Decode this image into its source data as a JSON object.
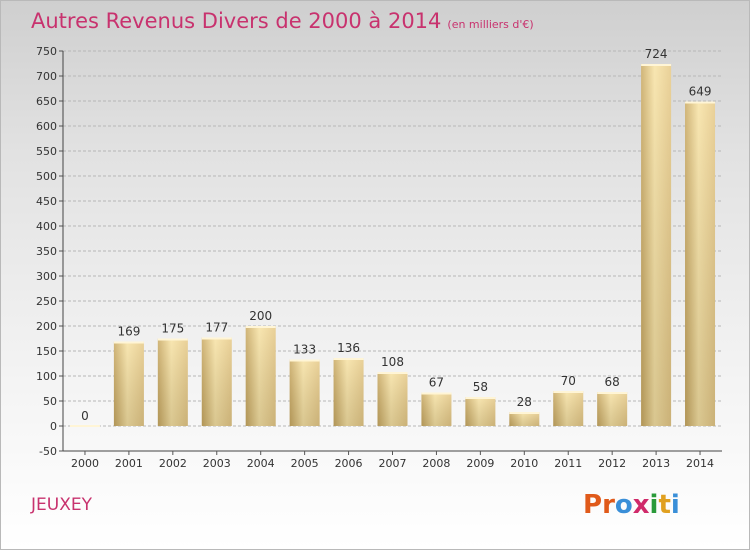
{
  "header": {
    "title": "Autres Revenus Divers de 2000 à 2014",
    "unit": "(en milliers d'€)"
  },
  "footer": {
    "place": "JEUXEY",
    "logo_letters": [
      "P",
      "r",
      "o",
      "x",
      "i",
      "t",
      "i"
    ],
    "logo_colors": [
      "#e05a1a",
      "#e05a1a",
      "#3a8fd8",
      "#d02a6a",
      "#2a9a3a",
      "#e0a020",
      "#3a8fd8"
    ]
  },
  "colors": {
    "title": "#c8326e",
    "bar_light": "#f5e0a0",
    "bar_dark": "#c8a860",
    "grid": "#b7b7b7"
  },
  "chart_data": {
    "type": "bar",
    "categories": [
      "2000",
      "2001",
      "2002",
      "2003",
      "2004",
      "2005",
      "2006",
      "2007",
      "2008",
      "2009",
      "2010",
      "2011",
      "2012",
      "2013",
      "2014"
    ],
    "values": [
      0,
      169,
      175,
      177,
      200,
      133,
      136,
      108,
      67,
      58,
      28,
      70,
      68,
      724,
      649
    ],
    "ylim": [
      -50,
      750
    ],
    "yticks": [
      -50,
      0,
      50,
      100,
      150,
      200,
      250,
      300,
      350,
      400,
      450,
      500,
      550,
      600,
      650,
      700,
      750
    ],
    "grid": true,
    "data_labels": true
  }
}
